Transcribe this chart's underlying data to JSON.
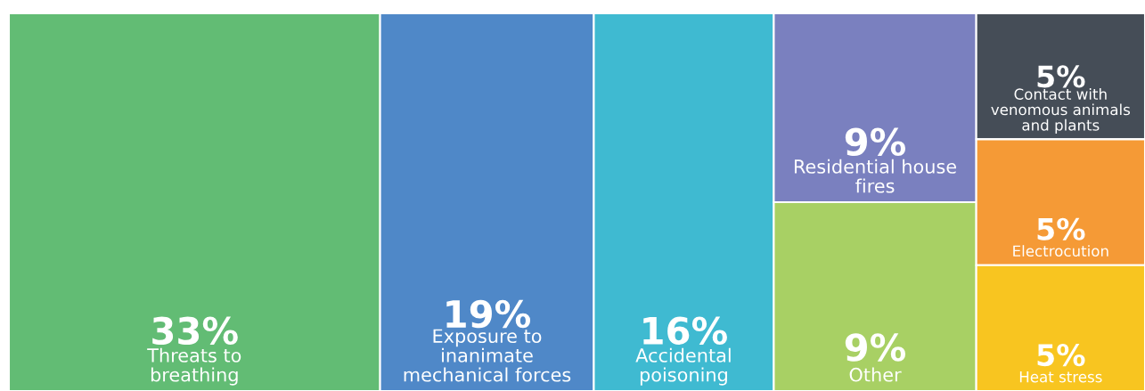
{
  "chart_data": {
    "type": "other",
    "categories": [
      "Threats to breathing",
      "Exposure to inanimate mechanical forces",
      "Accidental poisoning",
      "Residential house fires",
      "Other",
      "Contact with venomous animals and plants",
      "Electrocution",
      "Heat stress"
    ],
    "values": [
      33,
      19,
      16,
      9,
      9,
      5,
      5,
      5
    ],
    "value_labels": [
      "33%",
      "19%",
      "16%",
      "9%",
      "9%",
      "5%",
      "5%",
      "5%"
    ],
    "colors": [
      "#62bc74",
      "#4f88c8",
      "#3fbad1",
      "#7a80bf",
      "#a8d064",
      "#454d57",
      "#f59a36",
      "#f8c520"
    ]
  }
}
